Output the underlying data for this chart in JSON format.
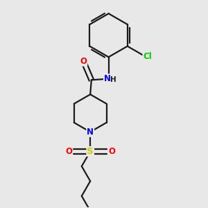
{
  "background_color": "#e8e8e8",
  "bond_color": "#1a1a1a",
  "atom_colors": {
    "N": "#0000ff",
    "O": "#ff0000",
    "S": "#cccc00",
    "Cl": "#00cc00",
    "C": "#1a1a1a"
  },
  "figsize": [
    3.0,
    3.0
  ],
  "dpi": 100,
  "lw": 1.6
}
